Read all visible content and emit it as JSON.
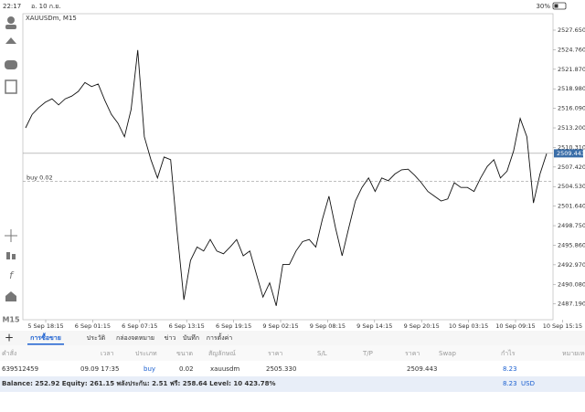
{
  "status": {
    "time": "22:17",
    "date": "อ. 10 ก.ย.",
    "battery": "30%"
  },
  "chart": {
    "type": "line",
    "title": "XAUUSDm, M15",
    "timeframe": "M15",
    "color": "#111111",
    "values": [
      2513.2,
      2515.2,
      2516.2,
      2517.0,
      2517.5,
      2516.6,
      2517.5,
      2517.9,
      2518.6,
      2519.9,
      2519.3,
      2519.7,
      2517.3,
      2515.2,
      2513.9,
      2511.9,
      2515.9,
      2524.7,
      2511.9,
      2508.5,
      2505.8,
      2508.9,
      2508.5,
      2497.7,
      2487.8,
      2493.6,
      2495.6,
      2495.0,
      2496.7,
      2495.0,
      2494.6,
      2495.6,
      2496.7,
      2494.3,
      2495.0,
      2491.6,
      2488.2,
      2490.3,
      2486.9,
      2493.0,
      2493.0,
      2495.0,
      2496.4,
      2496.7,
      2495.6,
      2499.7,
      2503.1,
      2498.4,
      2494.3,
      2498.4,
      2502.4,
      2504.4,
      2505.8,
      2503.8,
      2505.8,
      2505.4,
      2506.4,
      2507.0,
      2507.1,
      2506.2,
      2505.1,
      2503.8,
      2503.1,
      2502.4,
      2502.7,
      2505.1,
      2504.4,
      2504.4,
      2503.8,
      2505.8,
      2507.5,
      2508.5,
      2505.8,
      2506.8,
      2509.8,
      2514.6,
      2511.9,
      2502.1,
      2506.4,
      2509.4
    ],
    "ylim": [
      2484.85,
      2530.08
    ],
    "yticks": [
      {
        "value": 2527.65,
        "label": "2527.650"
      },
      {
        "value": 2524.76,
        "label": "2524.760"
      },
      {
        "value": 2521.87,
        "label": "2521.870"
      },
      {
        "value": 2518.98,
        "label": "2518.980"
      },
      {
        "value": 2516.09,
        "label": "2516.090"
      },
      {
        "value": 2513.2,
        "label": "2513.200"
      },
      {
        "value": 2510.31,
        "label": "2510.310"
      },
      {
        "value": 2507.42,
        "label": "2507.420"
      },
      {
        "value": 2504.53,
        "label": "2504.530"
      },
      {
        "value": 2501.64,
        "label": "2501.640"
      },
      {
        "value": 2498.75,
        "label": "2498.750"
      },
      {
        "value": 2495.86,
        "label": "2495.860"
      },
      {
        "value": 2492.97,
        "label": "2492.970"
      },
      {
        "value": 2490.08,
        "label": "2490.080"
      },
      {
        "value": 2487.19,
        "label": "2487.190"
      }
    ],
    "categories": [
      "5 Sep 18:15",
      "6 Sep 01:15",
      "6 Sep 07:15",
      "6 Sep 13:15",
      "6 Sep 19:15",
      "9 Sep 02:15",
      "9 Sep 08:15",
      "9 Sep 14:15",
      "9 Sep 20:15",
      "10 Sep 03:15",
      "10 Sep 09:15",
      "10 Sep 15:15"
    ],
    "bid": {
      "value": 2509.443,
      "label": "2509.443"
    },
    "order_line": {
      "value": 2505.33,
      "text": "buy 0.02"
    }
  },
  "tabs": [
    "การซื้อขาย",
    "ประวัติ",
    "กล่องจดหมาย",
    "ข่าว",
    "บันทึก",
    "การตั้งค่า"
  ],
  "table": {
    "header": [
      "คำสั่ง",
      "เวลา",
      "ประเภท",
      "ขนาด",
      "สัญลักษณ์",
      "ราคา",
      "S/L",
      "T/P",
      "ราคา",
      "Swap",
      "กำไร",
      "หมายเหตุ"
    ],
    "rows": [
      {
        "order": "639512459",
        "time": "09.09 17:35",
        "type": "buy",
        "size": "0.02",
        "symbol": "xauusdm",
        "price": "2505.330",
        "current": "2509.443",
        "profit": "8.23"
      }
    ]
  },
  "footer": {
    "summary": "Balance: 252.92 Equity: 261.15 พลังประกัน: 2.51 ฟรี: 258.64 Level: 10 423.78%",
    "profit": "8.23",
    "currency": "USD"
  }
}
